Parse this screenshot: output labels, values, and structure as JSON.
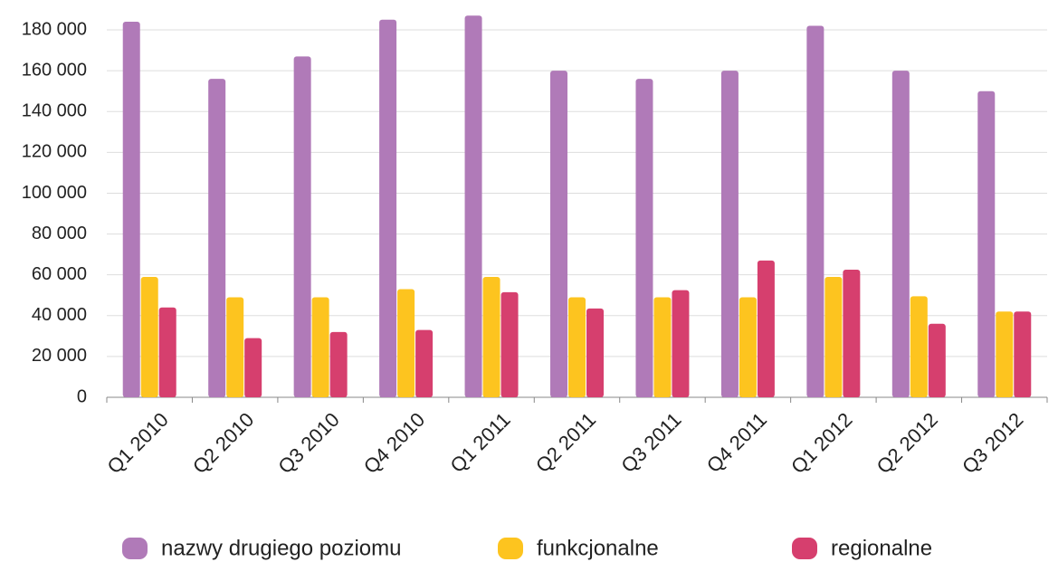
{
  "chart_data": {
    "type": "bar",
    "categories": [
      "Q1 2010",
      "Q2 2010",
      "Q3 2010",
      "Q4 2010",
      "Q1 2011",
      "Q2 2011",
      "Q3 2011",
      "Q4 2011",
      "Q1 2012",
      "Q2 2012",
      "Q3 2012"
    ],
    "series": [
      {
        "name": "nazwy drugiego poziomu",
        "color": "#b07ab8",
        "values": [
          184000,
          156000,
          167000,
          185000,
          187000,
          160000,
          156000,
          160000,
          182000,
          160000,
          150000
        ]
      },
      {
        "name": "funkcjonalne",
        "color": "#fdc41f",
        "values": [
          59000,
          49000,
          49000,
          53000,
          59000,
          49000,
          49000,
          49000,
          59000,
          49500,
          42000
        ]
      },
      {
        "name": "regionalne",
        "color": "#d63f6e",
        "values": [
          44000,
          29000,
          32000,
          33000,
          51500,
          43500,
          52500,
          67000,
          62500,
          36000,
          42000
        ]
      }
    ],
    "ylim": [
      0,
      190000
    ],
    "yticks": [
      0,
      {
        "value": 20000,
        "label": "20 000"
      },
      {
        "value": 40000,
        "label": "40 000"
      },
      {
        "value": 60000,
        "label": "60 000"
      },
      {
        "value": 80000,
        "label": "80 000"
      },
      {
        "value": 100000,
        "label": "100 000"
      },
      {
        "value": 120000,
        "label": "120 000"
      },
      {
        "value": 140000,
        "label": "140 000"
      },
      {
        "value": 160000,
        "label": "160 000"
      },
      {
        "value": 180000,
        "label": "180 000"
      }
    ],
    "grid": true,
    "legend": "bottom"
  }
}
